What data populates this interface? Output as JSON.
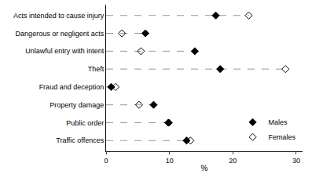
{
  "chart_data": {
    "type": "scatter",
    "orientation": "horizontal",
    "categories": [
      "Acts intended to cause injury",
      "Dangerous or negligent acts",
      "Unlawful entry with intent",
      "Theft",
      "Fraud and deception",
      "Property damage",
      "Public order",
      "Traffic offences"
    ],
    "series": [
      {
        "name": "Males",
        "color": "#000000",
        "marker": "diamond",
        "values": [
          17.3,
          6.2,
          14.0,
          18.0,
          0.8,
          7.5,
          9.9,
          12.7
        ]
      },
      {
        "name": "Females",
        "color": "#000000",
        "marker": "diamond-open",
        "values": [
          22.5,
          2.5,
          5.5,
          28.3,
          1.5,
          5.2,
          9.8,
          13.3
        ]
      }
    ],
    "x_label": "%",
    "xlim": [
      0,
      31
    ],
    "xticks": [
      0,
      10,
      20,
      30
    ],
    "grid": false,
    "legend": "lower right"
  }
}
